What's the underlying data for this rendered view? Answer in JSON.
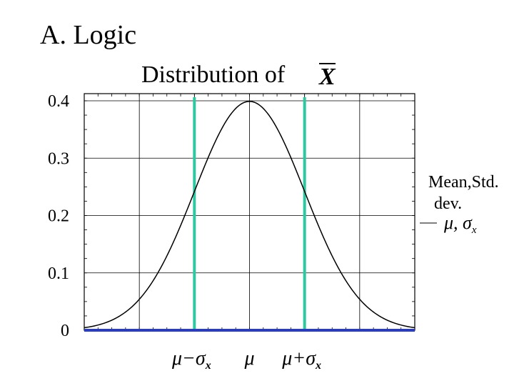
{
  "heading": "A. Logic",
  "chart_data": {
    "type": "line",
    "title": "Distribution of",
    "title_symbol": "X",
    "ylim": [
      0,
      0.4
    ],
    "xlim": [
      -3,
      3
    ],
    "ytick_labels": [
      {
        "value": 0,
        "label": "0"
      },
      {
        "value": 0.1,
        "label": "0.1"
      },
      {
        "value": 0.2,
        "label": "0.2"
      },
      {
        "value": 0.3,
        "label": "0.3"
      },
      {
        "value": 0.4,
        "label": "0.4"
      }
    ],
    "grid": true,
    "x": [
      -3,
      -2.5,
      -2,
      -1.5,
      -1,
      -0.5,
      0,
      0.5,
      1,
      1.5,
      2,
      2.5,
      3
    ],
    "y": [
      0.0044,
      0.0175,
      0.054,
      0.1295,
      0.242,
      0.352,
      0.399,
      0.352,
      0.242,
      0.1295,
      0.054,
      0.0175,
      0.0044
    ],
    "markers": [
      {
        "x": -1,
        "label": "μ−σ",
        "sub": "x"
      },
      {
        "x": 0,
        "label": "μ",
        "sub": ""
      },
      {
        "x": 1,
        "label": "μ+σ",
        "sub": "x"
      }
    ],
    "colors": {
      "curve": "#000000",
      "vlines": "#2dc8a0",
      "baseline": "#2b3dbf",
      "grid": "#000000"
    }
  },
  "note": {
    "line1": "Mean,Std.",
    "line2": "dev.",
    "symbol": "μ, σ",
    "symbol_sub": "x"
  }
}
